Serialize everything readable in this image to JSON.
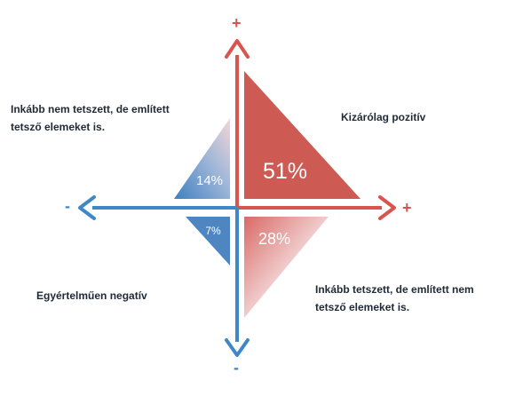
{
  "quadrants": {
    "top_right": {
      "value": "51%",
      "label": "Kizárólag pozitív",
      "color": "#cd5b54"
    },
    "top_left": {
      "value": "14%",
      "label_line1": "Inkább nem tetszett, de említett",
      "label_line2": "tetsző elemeket is."
    },
    "bottom_left": {
      "value": "7%",
      "label": "Egyértelműen negatív",
      "color": "#4e86c2"
    },
    "bottom_right": {
      "value": "28%",
      "label_line1": "Inkább tetszett, de említett nem",
      "label_line2": "tetsző elemeket is."
    }
  },
  "axes": {
    "top_sign": "+",
    "right_sign": "+",
    "left_sign": "-",
    "bottom_sign": "-",
    "positive_color": "#d9534f",
    "negative_color": "#3f87c6"
  }
}
